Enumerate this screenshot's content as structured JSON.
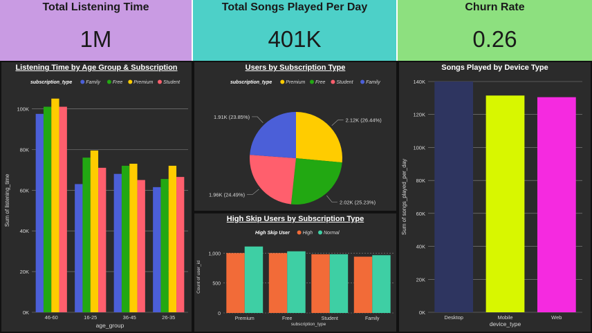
{
  "kpis": [
    {
      "title": "Total Listening Time",
      "value": "1M",
      "color": "#c99be3"
    },
    {
      "title": "Total Songs Played Per Day",
      "value": "401K",
      "color": "#4dd0c8"
    },
    {
      "title": "Churn Rate",
      "value": "0.26",
      "color": "#8de07f"
    }
  ],
  "chart_data": [
    {
      "type": "bar",
      "title": "Listening Time by Age Group & Subscription",
      "legend_title": "subscription_type",
      "categories": [
        "46-60",
        "16-25",
        "36-45",
        "26-35"
      ],
      "series": [
        {
          "name": "Family",
          "color": "#4b5fd8",
          "values": [
            97500,
            63000,
            68000,
            61500
          ]
        },
        {
          "name": "Free",
          "color": "#22a812",
          "values": [
            101000,
            76000,
            72000,
            65500
          ]
        },
        {
          "name": "Premium",
          "color": "#ffcc00",
          "values": [
            105000,
            79500,
            73000,
            72000
          ]
        },
        {
          "name": "Student",
          "color": "#ff5f6d",
          "values": [
            101000,
            71000,
            65000,
            66500
          ]
        }
      ],
      "xlabel": "age_group",
      "ylabel": "Sum of listening_time",
      "ylim": [
        0,
        110000
      ],
      "yticks": [
        {
          "v": 0,
          "l": "0K"
        },
        {
          "v": 20000,
          "l": "20K"
        },
        {
          "v": 40000,
          "l": "40K"
        },
        {
          "v": 60000,
          "l": "60K"
        },
        {
          "v": 80000,
          "l": "80K"
        },
        {
          "v": 100000,
          "l": "100K"
        }
      ],
      "legend": "top-left"
    },
    {
      "type": "pie",
      "title": "Users by Subscription Type",
      "legend_title": "subscription_type",
      "slices": [
        {
          "name": "Premium",
          "color": "#ffcc00",
          "value": 2120,
          "label": "2.12K (26.44%)"
        },
        {
          "name": "Free",
          "color": "#22a812",
          "value": 2020,
          "label": "2.02K (25.23%)"
        },
        {
          "name": "Student",
          "color": "#ff5f6d",
          "value": 1960,
          "label": "1.96K (24.49%)"
        },
        {
          "name": "Family",
          "color": "#4b5fd8",
          "value": 1910,
          "label": "1.91K (23.85%)"
        }
      ],
      "legend": "top"
    },
    {
      "type": "bar",
      "title": "High Skip Users by Subscription Type",
      "legend_title": "High Skip User",
      "categories": [
        "Premium",
        "Free",
        "Student",
        "Family"
      ],
      "series": [
        {
          "name": "High",
          "color": "#f26b38",
          "values": [
            1000,
            1000,
            980,
            940
          ]
        },
        {
          "name": "Normal",
          "color": "#3ecfa4",
          "values": [
            1110,
            1030,
            980,
            965
          ]
        }
      ],
      "xlabel": "subscription_type",
      "ylabel": "Count of user_id",
      "ylim": [
        0,
        1200
      ],
      "yticks": [
        {
          "v": 0,
          "l": "0"
        },
        {
          "v": 500,
          "l": "500"
        },
        {
          "v": 1000,
          "l": "1,000"
        }
      ],
      "legend": "top-left"
    },
    {
      "type": "bar",
      "title": "Songs Played by Device Type",
      "categories": [
        "Desktop",
        "Mobile",
        "Web"
      ],
      "series": [
        {
          "name": "Sum of songs_played_per_day",
          "values": [
            140000,
            131500,
            130500
          ],
          "colors": [
            "#2e3560",
            "#d8f700",
            "#f52ae0"
          ]
        }
      ],
      "xlabel": "device_type",
      "ylabel": "Sum of songs_played_per_day",
      "ylim": [
        0,
        140000
      ],
      "yticks": [
        {
          "v": 0,
          "l": "0K"
        },
        {
          "v": 20000,
          "l": "20K"
        },
        {
          "v": 40000,
          "l": "40K"
        },
        {
          "v": 60000,
          "l": "60K"
        },
        {
          "v": 80000,
          "l": "80K"
        },
        {
          "v": 100000,
          "l": "100K"
        },
        {
          "v": 120000,
          "l": "120K"
        },
        {
          "v": 140000,
          "l": "140K"
        }
      ]
    }
  ]
}
